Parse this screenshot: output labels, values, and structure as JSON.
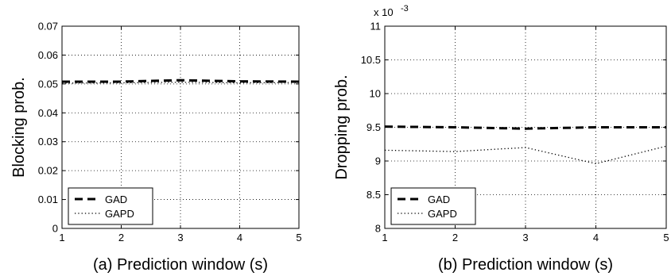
{
  "chart_data": [
    {
      "type": "line",
      "xlabel": "(a) Prediction window (s)",
      "ylabel": "Blocking prob.",
      "xlim": [
        1,
        5
      ],
      "ylim": [
        0,
        0.07
      ],
      "xticks": [
        "1",
        "2",
        "3",
        "4",
        "5"
      ],
      "yticks": [
        "0",
        "0.01",
        "0.02",
        "0.03",
        "0.04",
        "0.05",
        "0.06",
        "0.07"
      ],
      "grid": true,
      "legend_position": "bottom-left",
      "x": [
        1,
        2,
        3,
        4,
        5
      ],
      "series": [
        {
          "name": "GAD",
          "style": "dashed",
          "values": [
            0.0508,
            0.0508,
            0.0513,
            0.0509,
            0.0508
          ]
        },
        {
          "name": "GAPD",
          "style": "dotted",
          "values": [
            0.0503,
            0.0504,
            0.0506,
            0.0504,
            0.0505
          ]
        }
      ]
    },
    {
      "type": "line",
      "xlabel": "(b) Prediction window (s)",
      "ylabel": "Dropping prob.",
      "y_multiplier": "x 10",
      "y_multiplier_exp": "-3",
      "xlim": [
        1,
        5
      ],
      "ylim": [
        8,
        11
      ],
      "xticks": [
        "1",
        "2",
        "3",
        "4",
        "5"
      ],
      "yticks": [
        "8",
        "8.5",
        "9",
        "9.5",
        "10",
        "10.5",
        "11"
      ],
      "grid": true,
      "legend_position": "bottom-left",
      "x": [
        1,
        2,
        3,
        4,
        5
      ],
      "series": [
        {
          "name": "GAD",
          "style": "dashed",
          "values": [
            9.51,
            9.5,
            9.48,
            9.5,
            9.5
          ]
        },
        {
          "name": "GAPD",
          "style": "dotted",
          "values": [
            9.16,
            9.14,
            9.2,
            8.96,
            9.22
          ]
        }
      ]
    }
  ]
}
